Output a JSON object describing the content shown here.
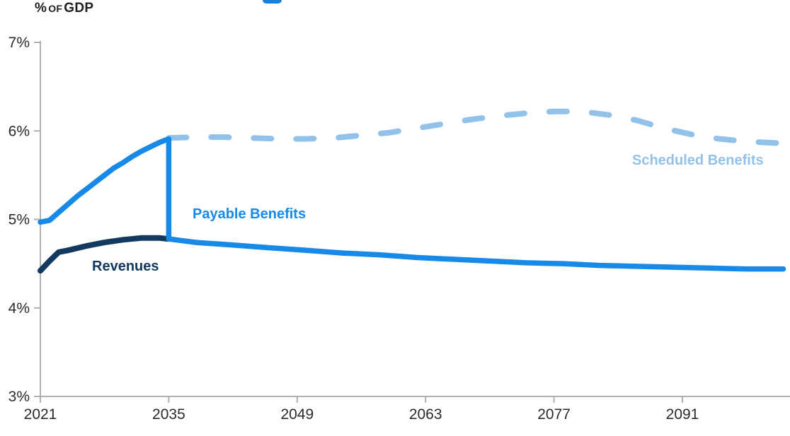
{
  "page": {
    "background": "#ffffff"
  },
  "header": {
    "ylabel_display": "% OF GDP"
  },
  "chart_data": {
    "type": "line",
    "title": "",
    "ylabel": "% of GDP",
    "ylabel_parts": [
      "%",
      "OF",
      "GDP"
    ],
    "grid": false,
    "legend_position": "inline-labels",
    "axis_color": "#b0b0b0",
    "tick_label_color": "#2b2b2b",
    "x_axis": {
      "min": 2021,
      "max": 2102,
      "tick_years": [
        2021,
        2035,
        2049,
        2063,
        2077,
        2091
      ]
    },
    "y_axis": {
      "min": 3,
      "max": 7,
      "ticks": [
        {
          "value": 7,
          "label": "7%"
        },
        {
          "value": 6,
          "label": "6%"
        },
        {
          "value": 5,
          "label": "5%"
        },
        {
          "value": 4,
          "label": "4%"
        },
        {
          "value": 3,
          "label": "3%"
        }
      ]
    },
    "series": [
      {
        "name": "Scheduled Benefits",
        "color": "#92c1ea",
        "style": "dashed",
        "x": [
          2035,
          2038,
          2041,
          2044,
          2047,
          2050,
          2053,
          2056,
          2059,
          2062,
          2065,
          2068,
          2071,
          2074,
          2077,
          2080,
          2083,
          2086,
          2089,
          2092,
          2095,
          2098,
          2102
        ],
        "values": [
          5.92,
          5.93,
          5.93,
          5.92,
          5.91,
          5.91,
          5.92,
          5.95,
          5.98,
          6.03,
          6.08,
          6.13,
          6.17,
          6.2,
          6.22,
          6.22,
          6.18,
          6.12,
          6.03,
          5.96,
          5.91,
          5.88,
          5.86
        ]
      },
      {
        "name": "Payable Benefits",
        "color": "#1789e8",
        "style": "solid",
        "x": [
          2021,
          2022,
          2023,
          2024,
          2025,
          2026,
          2027,
          2028,
          2029,
          2030,
          2031,
          2032,
          2033,
          2034,
          2035,
          2035,
          2038,
          2042,
          2046,
          2050,
          2054,
          2058,
          2062,
          2066,
          2070,
          2074,
          2078,
          2082,
          2086,
          2090,
          2094,
          2098,
          2102
        ],
        "values": [
          4.97,
          4.99,
          5.08,
          5.17,
          5.26,
          5.34,
          5.42,
          5.5,
          5.58,
          5.64,
          5.71,
          5.77,
          5.82,
          5.87,
          5.91,
          4.78,
          4.74,
          4.71,
          4.68,
          4.65,
          4.62,
          4.6,
          4.57,
          4.55,
          4.53,
          4.51,
          4.5,
          4.48,
          4.47,
          4.46,
          4.45,
          4.44,
          4.44
        ]
      },
      {
        "name": "Revenues",
        "color": "#123a5e",
        "style": "solid",
        "x": [
          2021,
          2022,
          2023,
          2024,
          2026,
          2028,
          2030,
          2032,
          2034,
          2035
        ],
        "values": [
          4.42,
          4.53,
          4.63,
          4.65,
          4.7,
          4.74,
          4.77,
          4.79,
          4.79,
          4.78
        ]
      }
    ]
  }
}
